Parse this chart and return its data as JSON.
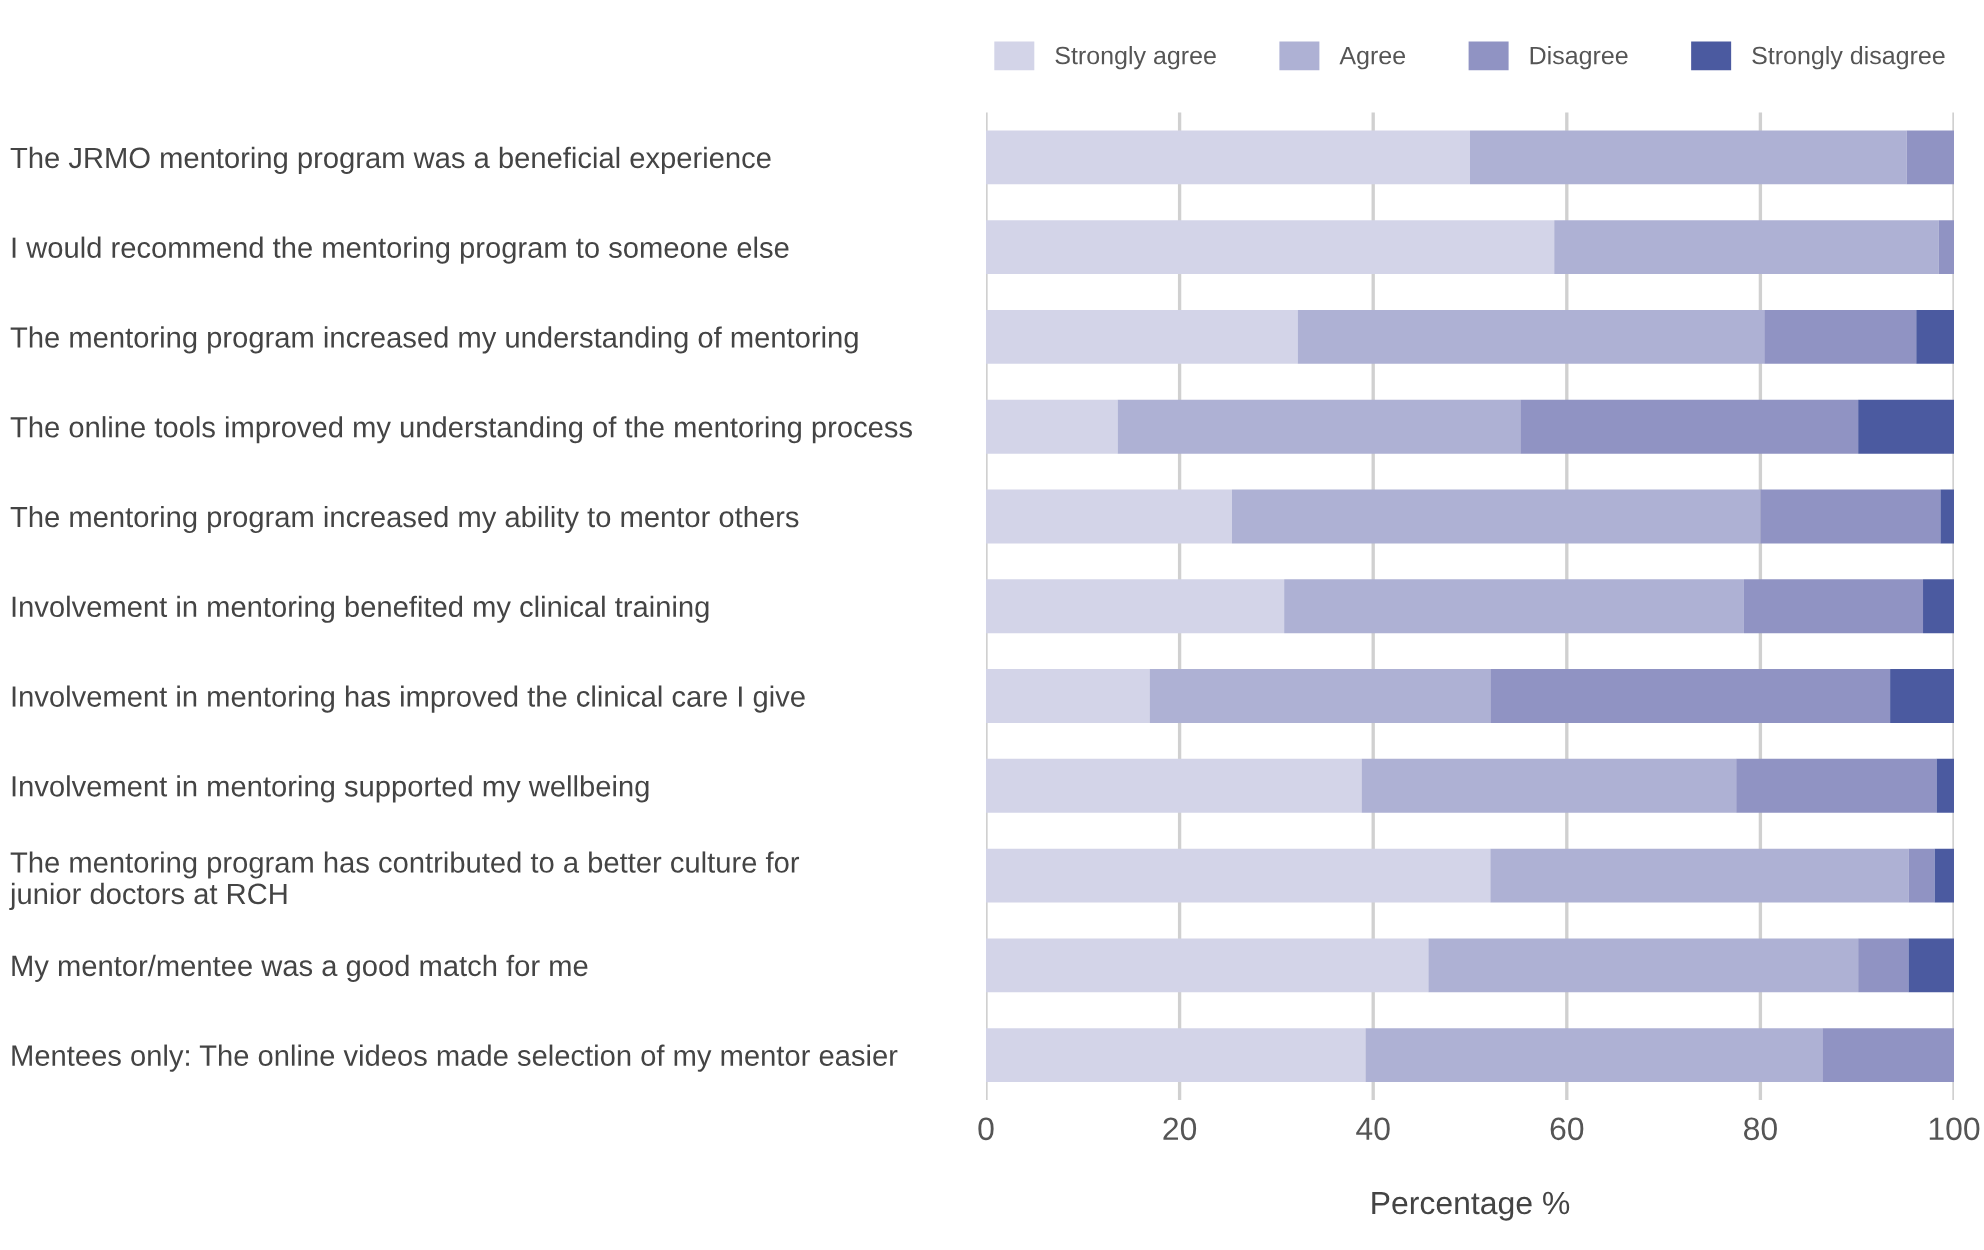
{
  "chart_data": {
    "type": "bar",
    "orientation": "horizontal",
    "stacked": true,
    "xlabel": "Percentage %",
    "categories": [
      "The JRMO mentoring program was a beneficial experience",
      "I would recommend the mentoring program to someone else",
      "The mentoring program increased my understanding of mentoring",
      "The online tools improved my understanding of the mentoring process",
      "The mentoring program increased my ability to mentor others",
      "Involvement in mentoring benefited my clinical training",
      "Involvement in mentoring has improved the clinical care I give",
      "Involvement in mentoring supported my wellbeing",
      "The mentoring program has contributed to a better culture for\njunior doctors at RCH",
      "My mentor/mentee was a good match for me",
      "Mentees only: The online videos made selection of my mentor easier"
    ],
    "series": [
      {
        "name": "Strongly agree",
        "color": "#d3d4e8",
        "values": [
          50.0,
          58.7,
          32.2,
          13.6,
          25.4,
          30.8,
          16.9,
          38.8,
          52.1,
          45.7,
          39.2
        ]
      },
      {
        "name": "Agree",
        "color": "#aeb1d4",
        "values": [
          45.1,
          39.7,
          48.2,
          41.6,
          54.6,
          47.5,
          35.2,
          38.7,
          43.2,
          44.4,
          47.2
        ]
      },
      {
        "name": "Disagree",
        "color": "#9093c3",
        "values": [
          4.9,
          1.6,
          15.7,
          34.9,
          18.6,
          18.5,
          41.3,
          20.7,
          2.7,
          5.2,
          13.6
        ]
      },
      {
        "name": "Strongly disagree",
        "color": "#4b5aa0",
        "values": [
          0,
          0,
          3.9,
          9.9,
          1.4,
          3.2,
          6.6,
          1.8,
          2.0,
          4.7,
          0
        ]
      }
    ],
    "xlim": [
      0,
      100
    ],
    "xticks": [
      0,
      20,
      40,
      60,
      80,
      100
    ],
    "grid": "x",
    "legend": "top"
  }
}
